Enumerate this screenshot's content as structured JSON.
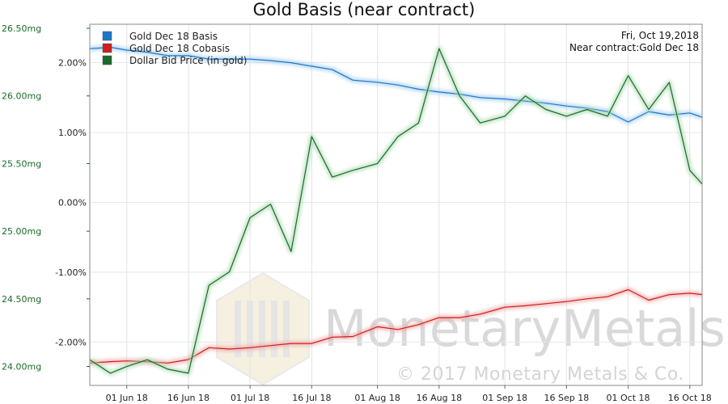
{
  "chart_data": {
    "type": "line",
    "title": "Gold Basis (near contract)",
    "x_dates": [
      "2018-05-23",
      "2018-05-28",
      "2018-06-01",
      "2018-06-06",
      "2018-06-11",
      "2018-06-16",
      "2018-06-21",
      "2018-06-26",
      "2018-07-01",
      "2018-07-06",
      "2018-07-11",
      "2018-07-16",
      "2018-07-21",
      "2018-07-26",
      "2018-08-01",
      "2018-08-06",
      "2018-08-11",
      "2018-08-16",
      "2018-08-21",
      "2018-08-26",
      "2018-09-01",
      "2018-09-06",
      "2018-09-11",
      "2018-09-16",
      "2018-09-21",
      "2018-09-26",
      "2018-10-01",
      "2018-10-06",
      "2018-10-11",
      "2018-10-16",
      "2018-10-19"
    ],
    "x_ticks": [
      "01 Jun 18",
      "16 Jun 18",
      "01 Jul 18",
      "16 Jul 18",
      "01 Aug 18",
      "16 Aug 18",
      "01 Sep 18",
      "16 Sep 18",
      "01 Oct 18",
      "16 Oct 18"
    ],
    "x_tick_dates": [
      "2018-06-01",
      "2018-06-16",
      "2018-07-01",
      "2018-07-16",
      "2018-08-01",
      "2018-08-16",
      "2018-09-01",
      "2018-09-16",
      "2018-10-01",
      "2018-10-16"
    ],
    "xlim": [
      "2018-05-23",
      "2018-10-19"
    ],
    "left_axis": {
      "unit": "mg",
      "ylim": [
        23.86,
        26.53
      ],
      "ticks": [
        "26.50mg",
        "26.00mg",
        "25.50mg",
        "25.00mg",
        "24.50mg",
        "24.00mg"
      ],
      "tick_values": [
        26.5,
        26.0,
        25.5,
        25.0,
        24.5,
        24.0
      ]
    },
    "right_axis": {
      "unit": "%",
      "ylim": [
        -2.62,
        2.55
      ],
      "ticks": [
        "2.00%",
        "1.00%",
        "0.00%",
        "-1.00%",
        "-2.00%"
      ],
      "tick_values": [
        2,
        1,
        0,
        -1,
        -2
      ]
    },
    "grid": true,
    "legend_position": "top-left",
    "series": [
      {
        "name": "Gold Dec 18 Basis",
        "color": "#1f77c9",
        "axis": "right",
        "values": [
          2.2,
          2.22,
          2.18,
          2.15,
          2.1,
          2.1,
          2.05,
          2.05,
          2.05,
          2.03,
          2.0,
          1.95,
          1.9,
          1.75,
          1.72,
          1.68,
          1.62,
          1.58,
          1.55,
          1.5,
          1.48,
          1.45,
          1.42,
          1.38,
          1.35,
          1.3,
          1.15,
          1.3,
          1.25,
          1.28,
          1.22
        ]
      },
      {
        "name": "Gold Dec 18 Cobasis",
        "color": "#cc1f1f",
        "axis": "right",
        "values": [
          -2.3,
          -2.28,
          -2.27,
          -2.28,
          -2.3,
          -2.25,
          -2.08,
          -2.1,
          -2.08,
          -2.05,
          -2.02,
          -2.02,
          -1.93,
          -1.92,
          -1.78,
          -1.82,
          -1.75,
          -1.65,
          -1.65,
          -1.6,
          -1.5,
          -1.48,
          -1.45,
          -1.42,
          -1.38,
          -1.35,
          -1.25,
          -1.4,
          -1.32,
          -1.3,
          -1.32
        ]
      },
      {
        "name": "Dollar Bid Price (in gold)",
        "color": "#1a6b2a",
        "axis": "left",
        "values": [
          24.05,
          23.95,
          24.0,
          24.05,
          23.98,
          23.95,
          24.6,
          24.7,
          25.1,
          25.2,
          24.85,
          25.7,
          25.4,
          25.45,
          25.5,
          25.7,
          25.8,
          26.35,
          26.0,
          25.8,
          25.85,
          26.0,
          25.9,
          25.85,
          25.9,
          25.85,
          26.15,
          25.9,
          26.1,
          25.45,
          25.35
        ]
      }
    ]
  },
  "info_box": {
    "date": "Fri, Oct 19,2018",
    "contract": "Near contract:Gold Dec 18"
  },
  "watermark": {
    "name": "MonetaryMetals",
    "copyright": "© 2017 Monetary Metals & Co."
  }
}
